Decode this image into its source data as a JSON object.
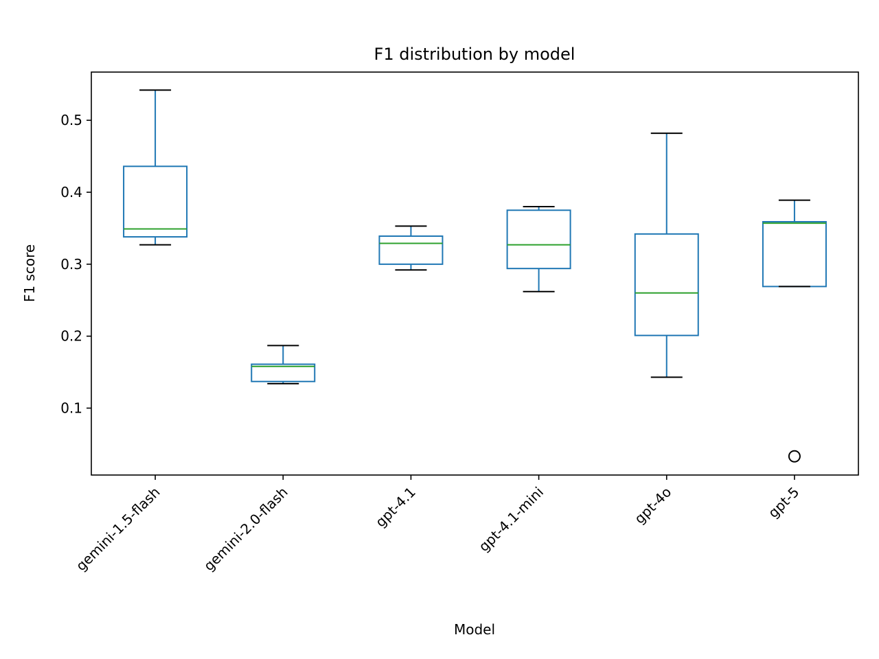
{
  "chart_data": {
    "type": "box",
    "title": "F1 distribution by model",
    "xlabel": "Model",
    "ylabel": "F1 score",
    "ylim": [
      0.007,
      0.567
    ],
    "yticks": [
      "0.1",
      "0.2",
      "0.3",
      "0.4",
      "0.5"
    ],
    "grid": false,
    "legend": "none",
    "categories": [
      "gemini-1.5-flash",
      "gemini-2.0-flash",
      "gpt-4.1",
      "gpt-4.1-mini",
      "gpt-4o",
      "gpt-5"
    ],
    "boxes": [
      {
        "whisker_low": 0.327,
        "q1": 0.338,
        "median": 0.349,
        "q3": 0.436,
        "whisker_high": 0.542,
        "outliers": []
      },
      {
        "whisker_low": 0.134,
        "q1": 0.137,
        "median": 0.158,
        "q3": 0.161,
        "whisker_high": 0.187,
        "outliers": []
      },
      {
        "whisker_low": 0.292,
        "q1": 0.3,
        "median": 0.329,
        "q3": 0.339,
        "whisker_high": 0.353,
        "outliers": []
      },
      {
        "whisker_low": 0.262,
        "q1": 0.294,
        "median": 0.327,
        "q3": 0.375,
        "whisker_high": 0.38,
        "outliers": []
      },
      {
        "whisker_low": 0.143,
        "q1": 0.201,
        "median": 0.26,
        "q3": 0.342,
        "whisker_high": 0.482,
        "outliers": []
      },
      {
        "whisker_low": 0.269,
        "q1": 0.269,
        "median": 0.357,
        "q3": 0.359,
        "whisker_high": 0.389,
        "outliers": [
          0.033
        ]
      }
    ],
    "colors": {
      "box": "#1f77b4",
      "median": "#2ca02c",
      "cap": "#000000",
      "axis": "#000000"
    }
  }
}
